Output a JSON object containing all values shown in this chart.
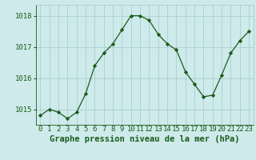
{
  "x": [
    0,
    1,
    2,
    3,
    4,
    5,
    6,
    7,
    8,
    9,
    10,
    11,
    12,
    13,
    14,
    15,
    16,
    17,
    18,
    19,
    20,
    21,
    22,
    23
  ],
  "y": [
    1014.8,
    1015.0,
    1014.9,
    1014.7,
    1014.9,
    1015.5,
    1016.4,
    1016.8,
    1017.1,
    1017.55,
    1018.0,
    1018.0,
    1017.85,
    1017.4,
    1017.1,
    1016.9,
    1016.2,
    1015.8,
    1015.4,
    1015.45,
    1016.1,
    1016.8,
    1017.2,
    1017.5
  ],
  "ylim": [
    1014.5,
    1018.35
  ],
  "yticks": [
    1015,
    1016,
    1017,
    1018
  ],
  "xlabel": "Graphe pression niveau de la mer (hPa)",
  "bg_color": "#ceeaea",
  "line_color": "#1a5c1a",
  "marker_color": "#1a5c1a",
  "grid_color": "#aacfcf",
  "xlabel_color": "#1a5c1a",
  "tick_color": "#1a5c1a",
  "xlabel_fontsize": 7.5,
  "tick_fontsize": 6.5
}
